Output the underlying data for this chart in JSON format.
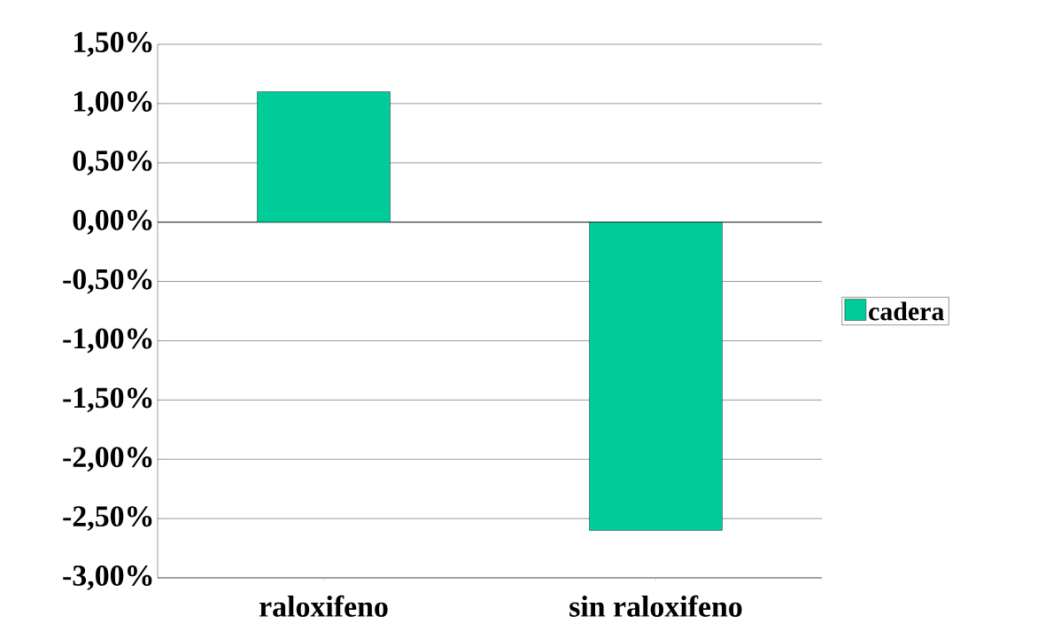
{
  "chart_data": {
    "type": "bar",
    "categories": [
      "raloxifeno",
      "sin raloxifeno"
    ],
    "series": [
      {
        "name": "cadera",
        "color": "#00cc99",
        "values": [
          1.1,
          -2.6
        ]
      }
    ],
    "ylim": [
      -3,
      1.5
    ],
    "yticks": [
      {
        "value": -3,
        "label": "-3,00%"
      },
      {
        "value": -2.5,
        "label": "-2,50%"
      },
      {
        "value": -2,
        "label": "-2,00%"
      },
      {
        "value": -1.5,
        "label": "-1,50%"
      },
      {
        "value": -1,
        "label": "-1,00%"
      },
      {
        "value": -0.5,
        "label": "-0,50%"
      },
      {
        "value": 0,
        "label": "0,00%"
      },
      {
        "value": 0.5,
        "label": "0,50%"
      },
      {
        "value": 1,
        "label": "1,00%"
      },
      {
        "value": 1.5,
        "label": "1,50%"
      }
    ],
    "grid": "y",
    "legend": "right"
  }
}
